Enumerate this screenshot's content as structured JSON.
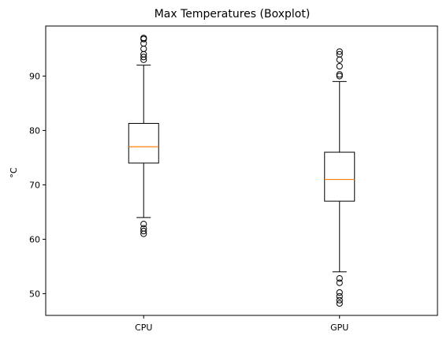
{
  "chart_data": {
    "type": "boxplot",
    "title": "Max Temperatures (Boxplot)",
    "xlabel": "",
    "ylabel": "°C",
    "ylim": [
      46,
      99.2
    ],
    "yticks": [
      50,
      60,
      70,
      80,
      90
    ],
    "categories": [
      "CPU",
      "GPU"
    ],
    "boxes": [
      {
        "name": "CPU",
        "whisker_low": 64,
        "q1": 74,
        "median": 77,
        "q3": 81.3,
        "whisker_high": 92,
        "outliers": [
          61,
          61.5,
          62,
          62.8,
          93,
          93.5,
          94,
          95,
          96,
          96.8,
          97
        ]
      },
      {
        "name": "GPU",
        "whisker_low": 54,
        "q1": 67,
        "median": 71,
        "q3": 76,
        "whisker_high": 89,
        "outliers": [
          48.2,
          48.8,
          49.5,
          50.2,
          52,
          52.8,
          90,
          90.3,
          91.8,
          93,
          94,
          94.5
        ]
      }
    ],
    "colors": {
      "box": "#000000",
      "median": "#ff7f0e",
      "background": "#ffffff"
    }
  }
}
